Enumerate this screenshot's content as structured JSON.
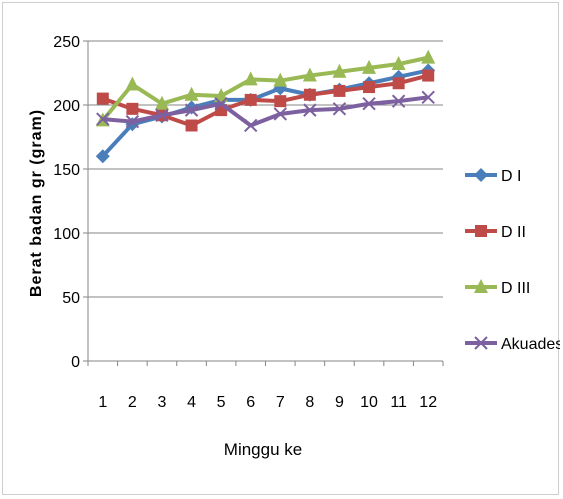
{
  "chart_data": {
    "type": "line",
    "title": "",
    "xlabel": "Minggu ke",
    "ylabel": "Berat badan gr (gram)",
    "categories": [
      "1",
      "2",
      "3",
      "4",
      "5",
      "6",
      "7",
      "8",
      "9",
      "10",
      "11",
      "12"
    ],
    "ylim": [
      0,
      250
    ],
    "yticks": [
      "0",
      "50",
      "100",
      "150",
      "200",
      "250"
    ],
    "grid": "horizontal",
    "legend_position": "right",
    "series": [
      {
        "name": "D I",
        "color": "#4a7ebb",
        "marker": "diamond",
        "values": [
          160,
          185,
          191,
          198,
          204,
          204,
          213,
          208,
          212,
          217,
          222,
          227
        ]
      },
      {
        "name": "D II",
        "color": "#be4b48",
        "marker": "square",
        "values": [
          205,
          197,
          192,
          184,
          196,
          204,
          203,
          208,
          211,
          214,
          217,
          223
        ]
      },
      {
        "name": "D III",
        "color": "#98b954",
        "marker": "triangle",
        "values": [
          188,
          216,
          201,
          208,
          207,
          220,
          219,
          223,
          226,
          229,
          232,
          237
        ]
      },
      {
        "name": "Akuades",
        "color": "#7d60a0",
        "marker": "x",
        "values": [
          189,
          187,
          192,
          196,
          201,
          184,
          193,
          196,
          197,
          201,
          203,
          206
        ]
      }
    ]
  }
}
